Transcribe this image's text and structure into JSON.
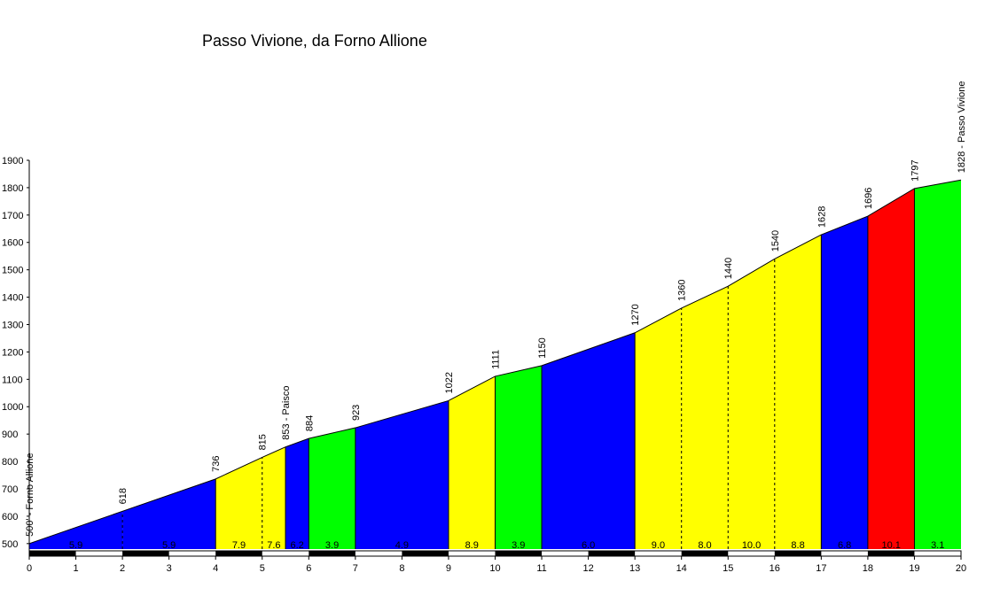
{
  "chart_data": {
    "type": "elevation-profile",
    "title": "Passo Vivione, da Forno Allione",
    "x": [
      0,
      2,
      4,
      5,
      5.5,
      6,
      7,
      9,
      10,
      11,
      13,
      14,
      15,
      16,
      17,
      18,
      19,
      20
    ],
    "values": [
      500,
      618,
      736,
      815,
      853,
      884,
      923,
      1022,
      1111,
      1150,
      1270,
      1360,
      1440,
      1540,
      1628,
      1696,
      1797,
      1828
    ],
    "value_labels": [
      "500' - Forno Allione",
      "618",
      "736",
      "815",
      "853 - Paisco",
      "884",
      "923",
      "1022",
      "1111",
      "1150",
      "1270",
      "1360",
      "1440",
      "1540",
      "1628",
      "1696",
      "1797",
      "1828 - Passo Vivione"
    ],
    "segments": [
      {
        "start": 0,
        "end": 2,
        "gradient": 5.9,
        "label": "5.9",
        "color": "#0000ff"
      },
      {
        "start": 2,
        "end": 4,
        "gradient": 5.9,
        "label": "5.9",
        "color": "#0000ff"
      },
      {
        "start": 4,
        "end": 5,
        "gradient": 7.9,
        "label": "7.9",
        "color": "#ffff00"
      },
      {
        "start": 5,
        "end": 5.5,
        "gradient": 7.6,
        "label": "7.6",
        "color": "#ffff00"
      },
      {
        "start": 5.5,
        "end": 6,
        "gradient": 6.2,
        "label": "6.2",
        "color": "#0000ff"
      },
      {
        "start": 6,
        "end": 7,
        "gradient": 3.9,
        "label": "3.9",
        "color": "#00ff00"
      },
      {
        "start": 7,
        "end": 9,
        "gradient": 4.9,
        "label": "4.9",
        "color": "#0000ff"
      },
      {
        "start": 9,
        "end": 10,
        "gradient": 8.9,
        "label": "8.9",
        "color": "#ffff00"
      },
      {
        "start": 10,
        "end": 11,
        "gradient": 3.9,
        "label": "3.9",
        "color": "#00ff00"
      },
      {
        "start": 11,
        "end": 13,
        "gradient": 6.0,
        "label": "6.0",
        "color": "#0000ff"
      },
      {
        "start": 13,
        "end": 14,
        "gradient": 9.0,
        "label": "9.0",
        "color": "#ffff00"
      },
      {
        "start": 14,
        "end": 15,
        "gradient": 8.0,
        "label": "8.0",
        "color": "#ffff00"
      },
      {
        "start": 15,
        "end": 16,
        "gradient": 10.0,
        "label": "10.0",
        "color": "#ffff00"
      },
      {
        "start": 16,
        "end": 17,
        "gradient": 8.8,
        "label": "8.8",
        "color": "#ffff00"
      },
      {
        "start": 17,
        "end": 18,
        "gradient": 6.8,
        "label": "6.8",
        "color": "#0000ff"
      },
      {
        "start": 18,
        "end": 19,
        "gradient": 10.1,
        "label": "10.1",
        "color": "#ff0000"
      },
      {
        "start": 19,
        "end": 20,
        "gradient": 3.1,
        "label": "3.1",
        "color": "#00ff00"
      }
    ],
    "xlim": [
      0,
      20
    ],
    "xticks": [
      0,
      1,
      2,
      3,
      4,
      5,
      6,
      7,
      8,
      9,
      10,
      11,
      12,
      13,
      14,
      15,
      16,
      17,
      18,
      19,
      20
    ],
    "ylim": [
      480,
      1900
    ],
    "yticks": [
      500,
      600,
      700,
      800,
      900,
      1000,
      1100,
      1200,
      1300,
      1400,
      1500,
      1600,
      1700,
      1800,
      1900
    ]
  }
}
